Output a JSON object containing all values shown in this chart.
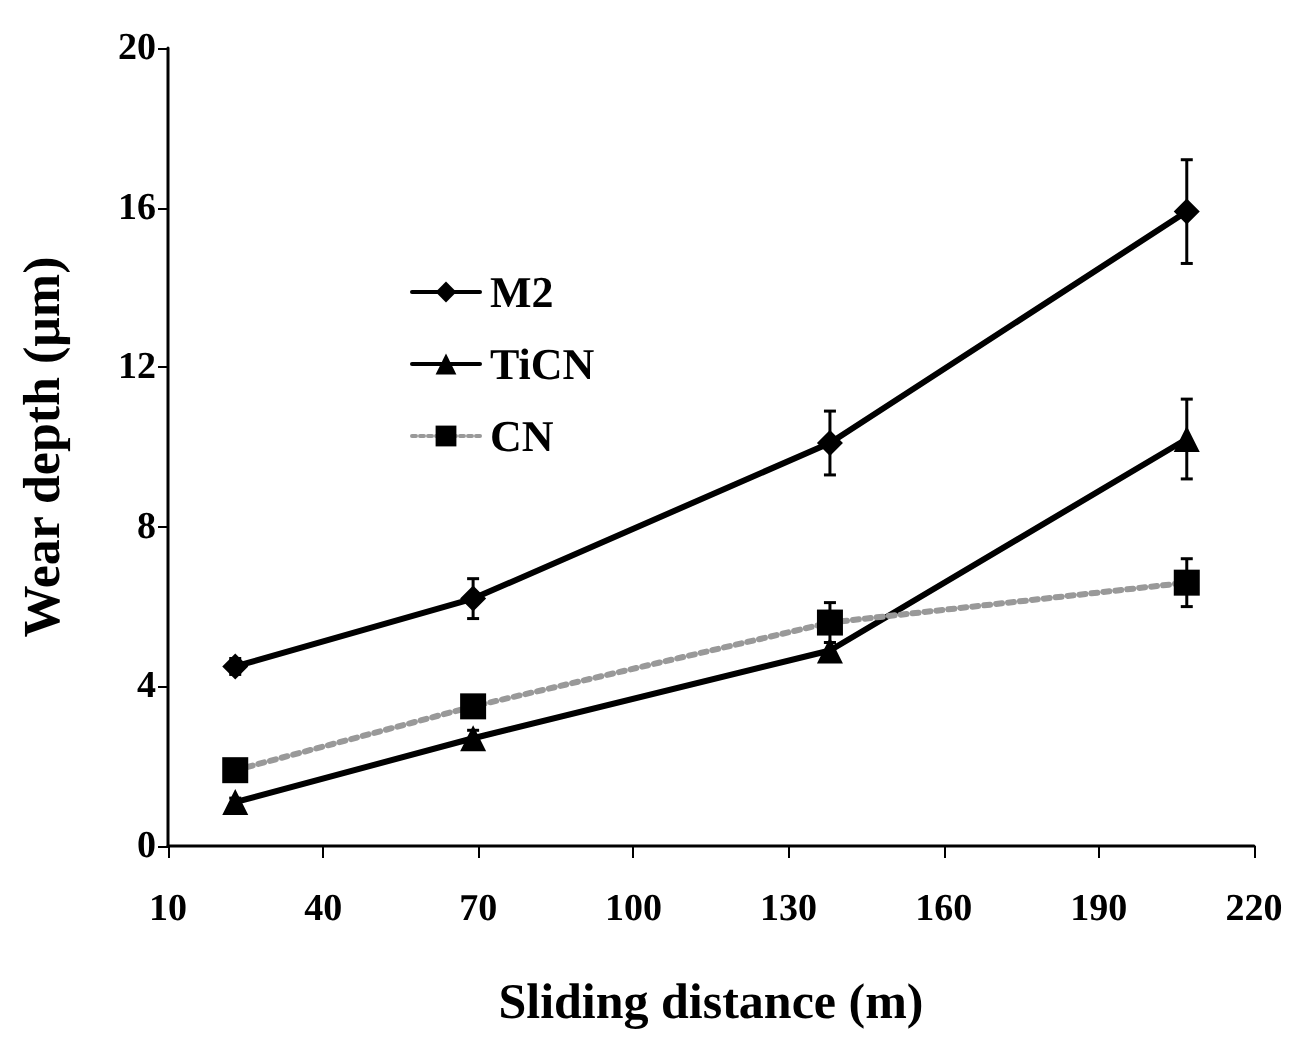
{
  "chart_data": {
    "type": "line",
    "xlabel": "Sliding distance (m)",
    "ylabel": "Wear depth (μm)",
    "x": [
      23,
      69,
      138,
      207
    ],
    "series": [
      {
        "name": "M2",
        "color": "#000000",
        "marker": "diamond",
        "line_style": "solid",
        "values": [
          4.5,
          6.2,
          10.1,
          15.9
        ],
        "errors": [
          0.2,
          0.5,
          0.8,
          1.3
        ]
      },
      {
        "name": "TiCN",
        "color": "#000000",
        "marker": "triangle",
        "line_style": "solid",
        "values": [
          1.1,
          2.7,
          4.9,
          10.2
        ],
        "errors": [
          0.1,
          0.2,
          0.2,
          1.0
        ]
      },
      {
        "name": "CN",
        "color": "#999999",
        "marker": "square",
        "line_style": "dotted",
        "values": [
          1.9,
          3.5,
          5.6,
          6.6
        ],
        "errors": [
          0.2,
          0.2,
          0.5,
          0.6
        ]
      }
    ],
    "xlim": [
      10,
      220
    ],
    "xticks": [
      10,
      40,
      70,
      100,
      130,
      160,
      190,
      220
    ],
    "ylim": [
      0,
      20
    ],
    "yticks": [
      0,
      4,
      8,
      12,
      16,
      20
    ],
    "grid": false,
    "legend": "top left"
  }
}
